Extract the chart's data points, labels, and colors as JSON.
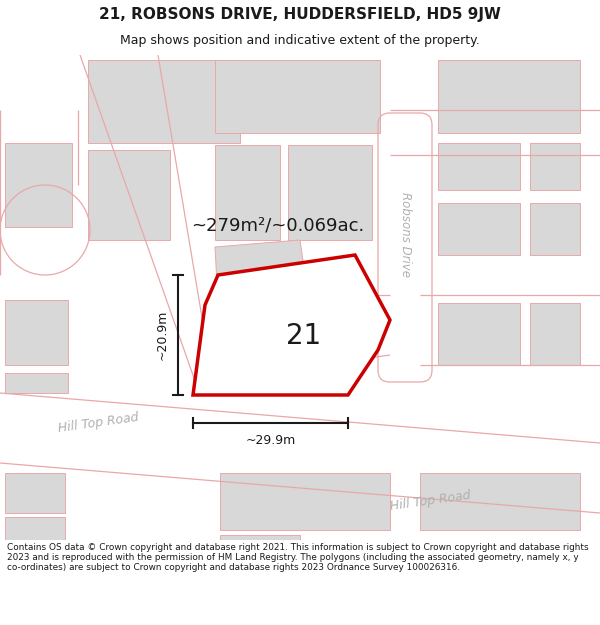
{
  "title": "21, ROBSONS DRIVE, HUDDERSFIELD, HD5 9JW",
  "subtitle": "Map shows position and indicative extent of the property.",
  "area_label": "~279m²/~0.069ac.",
  "plot_number": "21",
  "dim_width": "~29.9m",
  "dim_height": "~20.9m",
  "road_hill1": "Hill Top Road",
  "road_hill2": "Hill Top Road",
  "road_robsons": "Robsons Drive",
  "footer": "Contains OS data © Crown copyright and database right 2021. This information is subject to Crown copyright and database rights 2023 and is reproduced with the permission of HM Land Registry. The polygons (including the associated geometry, namely x, y co-ordinates) are subject to Crown copyright and database rights 2023 Ordnance Survey 100026316.",
  "map_bg": "#f7f4f4",
  "building_fc": "#d8d8d8",
  "building_ec": "#e8a8a8",
  "road_fc": "#ffffff",
  "road_ec": "#e8a8a8",
  "plot_ec": "#cc0000",
  "plot_fc": "#ffffff",
  "dim_lc": "#1a1a1a",
  "road_label_c": "#b0b0b0",
  "text_c": "#1a1a1a",
  "white": "#ffffff"
}
